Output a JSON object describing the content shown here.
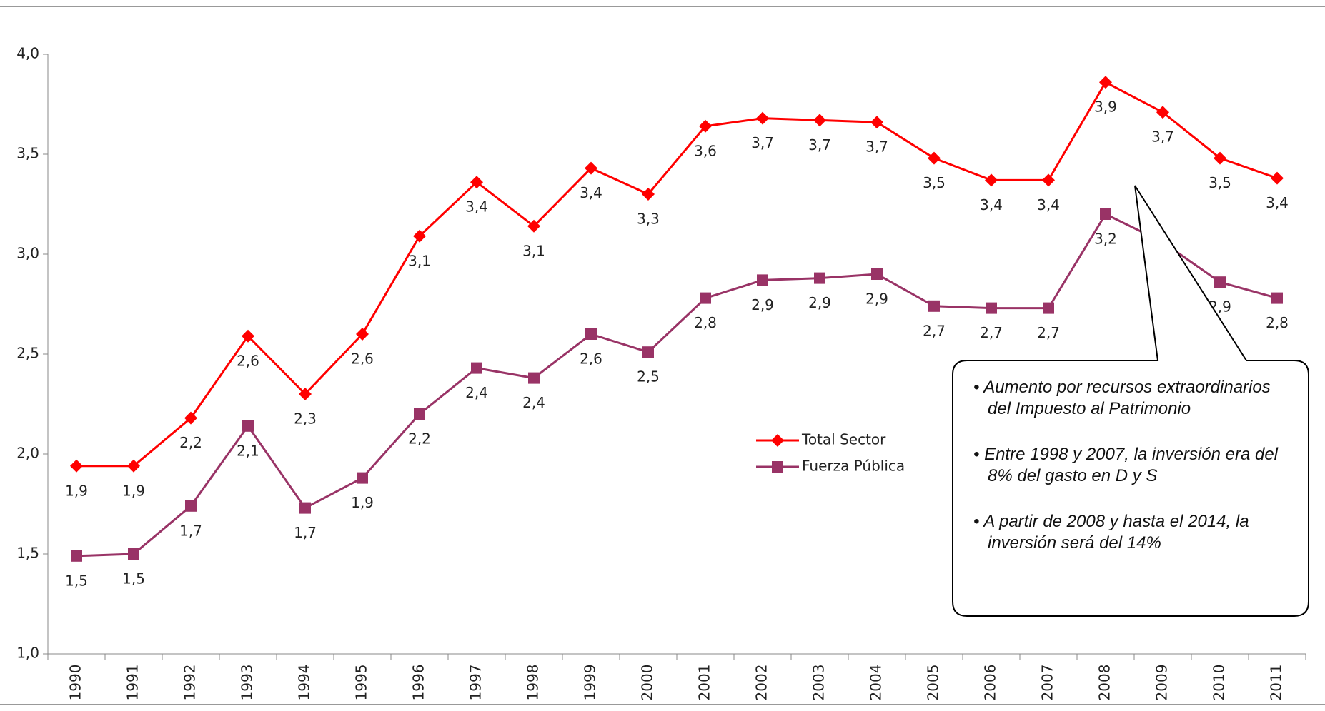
{
  "chart_data": {
    "type": "line",
    "categories": [
      "1990",
      "1991",
      "1992",
      "1993",
      "1994",
      "1995",
      "1996",
      "1997",
      "1998",
      "1999",
      "2000",
      "2001",
      "2002",
      "2003",
      "2004",
      "2005",
      "2006",
      "2007",
      "2008",
      "2009",
      "2010",
      "2011"
    ],
    "series": [
      {
        "name": "Total Sector",
        "color": "#ff0000",
        "marker": "diamond",
        "values": [
          1.94,
          1.94,
          2.18,
          2.59,
          2.3,
          2.6,
          3.09,
          3.36,
          3.14,
          3.43,
          3.3,
          3.64,
          3.68,
          3.67,
          3.66,
          3.48,
          3.37,
          3.37,
          3.86,
          3.71,
          3.48,
          3.38
        ],
        "value_labels": [
          "1,9",
          "1,9",
          "2,2",
          "2,6",
          "2,3",
          "2,6",
          "3,1",
          "3,4",
          "3,1",
          "3,4",
          "3,3",
          "3,6",
          "3,7",
          "3,7",
          "3,7",
          "3,5",
          "3,4",
          "3,4",
          "3,9",
          "3,7",
          "3,5",
          "3,4"
        ]
      },
      {
        "name": "Fuerza Pública",
        "color": "#993366",
        "marker": "square",
        "values": [
          1.49,
          1.5,
          1.74,
          2.14,
          1.73,
          1.88,
          2.2,
          2.43,
          2.38,
          2.6,
          2.51,
          2.78,
          2.87,
          2.88,
          2.9,
          2.74,
          2.73,
          2.73,
          3.2,
          3.06,
          2.86,
          2.78
        ],
        "value_labels": [
          "1,5",
          "1,5",
          "1,7",
          "2,1",
          "1,7",
          "1,9",
          "2,2",
          "2,4",
          "2,4",
          "2,6",
          "2,5",
          "2,8",
          "2,9",
          "2,9",
          "2,9",
          "2,7",
          "2,7",
          "2,7",
          "3,2",
          "3,1",
          "2,9",
          "2,8"
        ]
      }
    ],
    "ylim": [
      1.0,
      4.0
    ],
    "yticks": [
      {
        "value": 1.0,
        "label": "1,0"
      },
      {
        "value": 1.5,
        "label": "1,5"
      },
      {
        "value": 2.0,
        "label": "2,0"
      },
      {
        "value": 2.5,
        "label": "2,5"
      },
      {
        "value": 3.0,
        "label": "3,0"
      },
      {
        "value": 3.5,
        "label": "3,5"
      },
      {
        "value": 4.0,
        "label": "4,0"
      }
    ],
    "grid": false,
    "annotations": [
      "Aumento por recursos extraordinarios del Impuesto al Patrimonio",
      "Entre 1998 y 2007, la inversión era del 8% del gasto en D y S",
      "A partir de 2008 y hasta el 2014, la inversión será del 14%"
    ]
  }
}
